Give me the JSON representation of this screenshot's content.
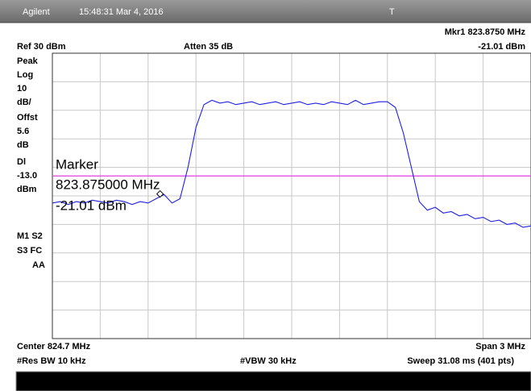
{
  "header": {
    "brand": "Agilent",
    "timestamp": "15:48:31  Mar 4, 2016",
    "mode": "T"
  },
  "readout": {
    "marker": "Mkr1  823.8750 MHz",
    "marker_level": "-21.01 dBm",
    "ref": "Ref 30 dBm",
    "atten": "Atten 35 dB"
  },
  "left_panel": [
    "Peak",
    "Log",
    "10",
    "dB/",
    "Offst",
    "5.6",
    "dB",
    "Dl",
    "-13.0",
    "dBm",
    "M1  S2",
    "S3  FC",
    "AA"
  ],
  "footer": {
    "center": "Center 824.7 MHz",
    "span": "Span 3 MHz",
    "rbw": "#Res BW 10 kHz",
    "vbw": "#VBW 30 kHz",
    "sweep": "Sweep 31.08 ms (401 pts)"
  },
  "chart_data": {
    "type": "line",
    "xlim": [
      823.2,
      826.2
    ],
    "ylim": [
      -70,
      30
    ],
    "xticks": [
      823.2,
      823.5,
      823.8,
      824.1,
      824.4,
      824.7,
      825.0,
      825.3,
      825.6,
      825.9,
      826.2
    ],
    "yticks": [
      -70,
      -60,
      -50,
      -40,
      -30,
      -20,
      -10,
      0,
      10,
      20,
      30
    ],
    "grid": true,
    "x": [
      823.2,
      823.25,
      823.3,
      823.35,
      823.4,
      823.45,
      823.5,
      823.55,
      823.6,
      823.65,
      823.7,
      823.75,
      823.8,
      823.85,
      823.9,
      823.95,
      824.0,
      824.05,
      824.1,
      824.15,
      824.2,
      824.25,
      824.3,
      824.35,
      824.4,
      824.45,
      824.5,
      824.55,
      824.6,
      824.65,
      824.7,
      824.75,
      824.8,
      824.85,
      824.9,
      824.95,
      825.0,
      825.05,
      825.1,
      825.15,
      825.2,
      825.25,
      825.3,
      825.35,
      825.4,
      825.45,
      825.5,
      825.55,
      825.6,
      825.65,
      825.7,
      825.75,
      825.8,
      825.85,
      825.9,
      825.95,
      826.0,
      826.05,
      826.1,
      826.15,
      826.2
    ],
    "series": [
      {
        "color": "#2020e0",
        "values": [
          -22.5,
          -22,
          -23,
          -22,
          -22.5,
          -21.5,
          -22,
          -22.5,
          -21.5,
          -22,
          -23,
          -22,
          -22.5,
          -21,
          -19.5,
          -22.5,
          -21,
          -10,
          4,
          12,
          13.5,
          12.5,
          13,
          12,
          12.5,
          13,
          12,
          12.5,
          13,
          12,
          12.5,
          13,
          12,
          12.5,
          12,
          13,
          12.5,
          12,
          13.5,
          12,
          12.5,
          13,
          13,
          11,
          2,
          -10,
          -22,
          -25,
          -24,
          -26,
          -25.5,
          -27,
          -26.5,
          -28,
          -27.5,
          -29,
          -28.5,
          -30,
          -29.5,
          -31,
          -30.5
        ]
      }
    ],
    "display_line": {
      "value": -13,
      "label": "-13.0",
      "color": "#e040e0"
    },
    "marker": {
      "x": 823.875,
      "y": -21.01,
      "label": "Marker",
      "freq_label": "823.875000 MHz",
      "level_label": "-21.01 dBm"
    }
  }
}
